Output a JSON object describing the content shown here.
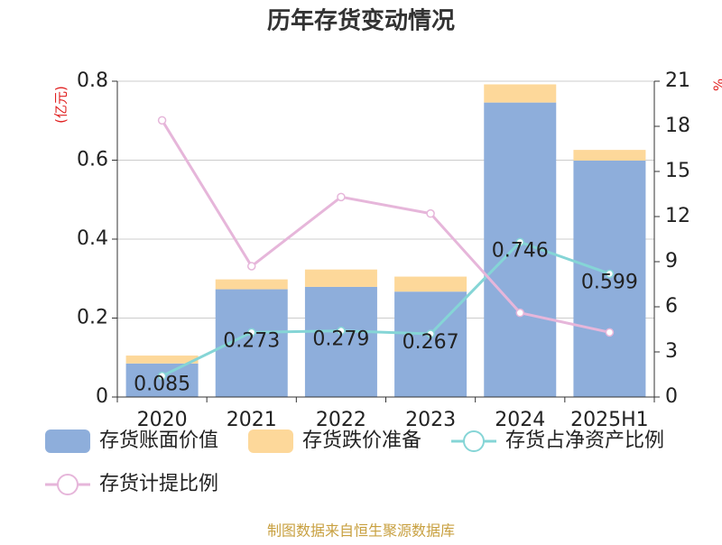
{
  "chart_data": {
    "type": "bar",
    "title": "历年存货变动情况",
    "y_label": "(亿元)",
    "y2_label": "%",
    "source": "制图数据来自恒生聚源数据库",
    "categories": [
      "2020",
      "2021",
      "2022",
      "2023",
      "2024",
      "2025H1"
    ],
    "series": [
      {
        "name": "存货账面价值",
        "type": "bar",
        "color": "#8eaedb",
        "values": [
          0.085,
          0.273,
          0.279,
          0.267,
          0.746,
          0.599
        ]
      },
      {
        "name": "存货跌价准备",
        "type": "bar",
        "color": "#fdd89a",
        "values": [
          0.02,
          0.025,
          0.044,
          0.038,
          0.046,
          0.027
        ]
      },
      {
        "name": "存货占净资产比例",
        "type": "line",
        "axis": "y2",
        "color": "#85d5d6",
        "values": [
          1.4,
          4.3,
          4.4,
          4.2,
          10.3,
          8.2
        ]
      },
      {
        "name": "存货计提比例",
        "type": "line",
        "axis": "y2",
        "color": "#e6b6da",
        "values": [
          18.4,
          8.7,
          13.3,
          12.2,
          5.6,
          4.3
        ]
      }
    ],
    "ylim": [
      0,
      0.8
    ],
    "yticks": [
      0,
      0.2,
      0.4,
      0.6,
      0.8
    ],
    "y2lim": [
      0,
      21
    ],
    "y2ticks": [
      0,
      3,
      6,
      9,
      12,
      15,
      18,
      21
    ],
    "grid": true
  }
}
